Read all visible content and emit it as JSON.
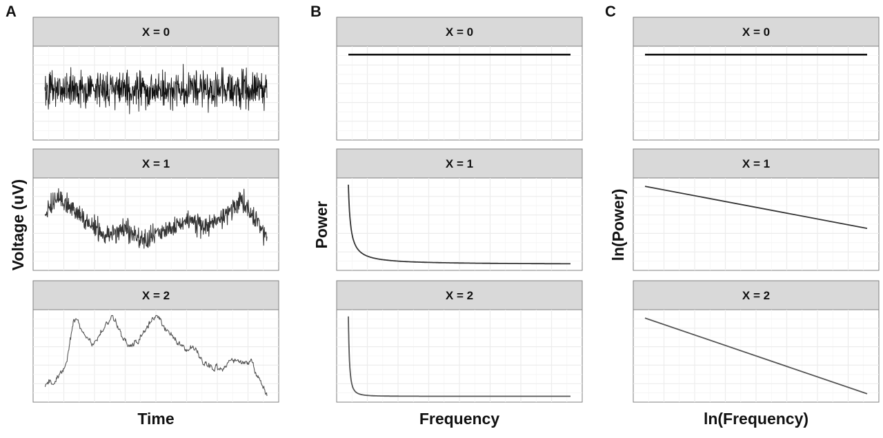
{
  "figure": {
    "panel_labels": [
      "A",
      "B",
      "C"
    ]
  },
  "chart_data": [
    {
      "type": "line",
      "panel": "A",
      "xlabel": "Time",
      "ylabel": "Voltage (uV)",
      "facets": [
        "X = 0",
        "X = 1",
        "X = 2"
      ],
      "x_range": [
        0,
        1
      ],
      "grid": true,
      "series": [
        {
          "facet": "X = 0",
          "kind": "white-noise",
          "level": 0.55,
          "amplitude": 0.28,
          "color": "#111111"
        },
        {
          "facet": "X = 1",
          "kind": "pink-noise",
          "color": "#333333",
          "trend": [
            [
              0,
              0.6
            ],
            [
              0.05,
              0.8
            ],
            [
              0.1,
              0.72
            ],
            [
              0.18,
              0.55
            ],
            [
              0.27,
              0.38
            ],
            [
              0.35,
              0.45
            ],
            [
              0.45,
              0.3
            ],
            [
              0.55,
              0.42
            ],
            [
              0.65,
              0.55
            ],
            [
              0.72,
              0.48
            ],
            [
              0.8,
              0.55
            ],
            [
              0.88,
              0.8
            ],
            [
              0.93,
              0.65
            ],
            [
              1,
              0.35
            ]
          ]
        },
        {
          "facet": "X = 2",
          "kind": "brown-noise",
          "color": "#555555",
          "trend": [
            [
              0,
              0.15
            ],
            [
              0.05,
              0.2
            ],
            [
              0.1,
              0.45
            ],
            [
              0.13,
              0.95
            ],
            [
              0.18,
              0.75
            ],
            [
              0.22,
              0.65
            ],
            [
              0.3,
              0.98
            ],
            [
              0.35,
              0.72
            ],
            [
              0.38,
              0.62
            ],
            [
              0.43,
              0.72
            ],
            [
              0.5,
              0.98
            ],
            [
              0.56,
              0.75
            ],
            [
              0.6,
              0.65
            ],
            [
              0.67,
              0.58
            ],
            [
              0.72,
              0.4
            ],
            [
              0.78,
              0.33
            ],
            [
              0.84,
              0.42
            ],
            [
              0.9,
              0.45
            ],
            [
              0.93,
              0.45
            ],
            [
              0.96,
              0.25
            ],
            [
              1,
              0.05
            ]
          ]
        }
      ]
    },
    {
      "type": "line",
      "panel": "B",
      "xlabel": "Frequency",
      "ylabel": "Power",
      "facets": [
        "X = 0",
        "X = 1",
        "X = 2"
      ],
      "x_range": [
        1,
        100
      ],
      "grid": true,
      "series": [
        {
          "facet": "X = 0",
          "power_law_exponent": 0,
          "color": "#111111"
        },
        {
          "facet": "X = 1",
          "power_law_exponent": 1,
          "color": "#333333"
        },
        {
          "facet": "X = 2",
          "power_law_exponent": 2,
          "color": "#555555"
        }
      ]
    },
    {
      "type": "line",
      "panel": "C",
      "xlabel": "ln(Frequency)",
      "ylabel": "ln(Power)",
      "facets": [
        "X = 0",
        "X = 1",
        "X = 2"
      ],
      "grid": true,
      "series": [
        {
          "facet": "X = 0",
          "slope": 0,
          "y_start": 0.95,
          "y_end": 0.95,
          "color": "#111111"
        },
        {
          "facet": "X = 1",
          "slope": -1,
          "y_start": 0.95,
          "y_end": 0.45,
          "color": "#333333"
        },
        {
          "facet": "X = 2",
          "slope": -2,
          "y_start": 0.95,
          "y_end": 0.05,
          "color": "#555555"
        }
      ]
    }
  ]
}
